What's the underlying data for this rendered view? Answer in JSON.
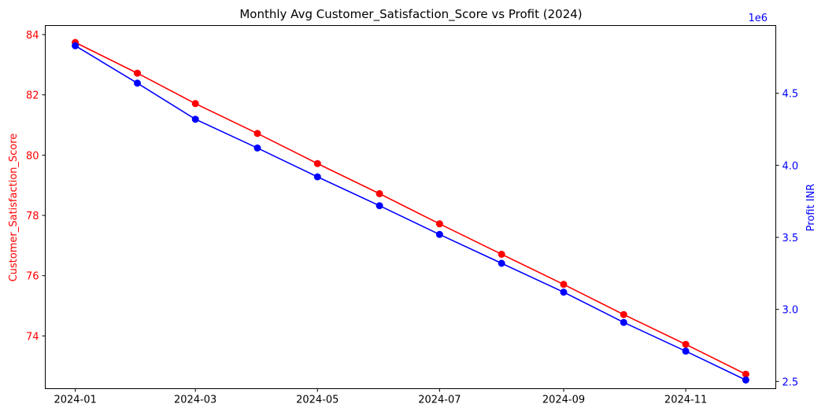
{
  "chart_data": {
    "type": "line",
    "title": "Monthly Avg Customer_Satisfaction_Score vs Profit (2024)",
    "xlabel": "",
    "x": [
      "2024-01-01",
      "2024-02-01",
      "2024-03-01",
      "2024-04-01",
      "2024-05-01",
      "2024-06-01",
      "2024-07-01",
      "2024-08-01",
      "2024-09-01",
      "2024-10-01",
      "2024-11-01",
      "2024-12-01"
    ],
    "x_tick_labels": [
      "2024-01",
      "2024-03",
      "2024-05",
      "2024-07",
      "2024-09",
      "2024-11"
    ],
    "x_tick_dates": [
      "2024-01-01",
      "2024-03-01",
      "2024-05-01",
      "2024-07-01",
      "2024-09-01",
      "2024-11-01"
    ],
    "xlim": [
      "2023-12-17",
      "2024-12-16"
    ],
    "left_axis": {
      "label": "Customer_Satisfaction_Score",
      "color": "#ff0000",
      "ticks": [
        74,
        76,
        78,
        80,
        82,
        84
      ],
      "ylim": [
        72.25,
        84.3
      ]
    },
    "right_axis": {
      "label": "Profit INR",
      "offset_text": "1e6",
      "color": "#0000ff",
      "ticks": [
        2.5,
        3.0,
        3.5,
        4.0,
        4.5
      ],
      "tick_labels": [
        "2.5",
        "3.0",
        "3.5",
        "4.0",
        "4.5"
      ],
      "ylim": [
        2.45,
        4.97
      ]
    },
    "series": [
      {
        "axis": "left",
        "color": "#ff0000",
        "values": [
          83.74,
          82.72,
          81.71,
          80.72,
          79.72,
          78.72,
          77.72,
          76.71,
          75.71,
          74.71,
          73.72,
          72.73
        ]
      },
      {
        "axis": "right",
        "color": "#0000ff",
        "values": [
          4.83,
          4.57,
          4.32,
          4.12,
          3.92,
          3.72,
          3.52,
          3.32,
          3.12,
          2.91,
          2.71,
          2.51
        ]
      }
    ],
    "grid": false
  }
}
